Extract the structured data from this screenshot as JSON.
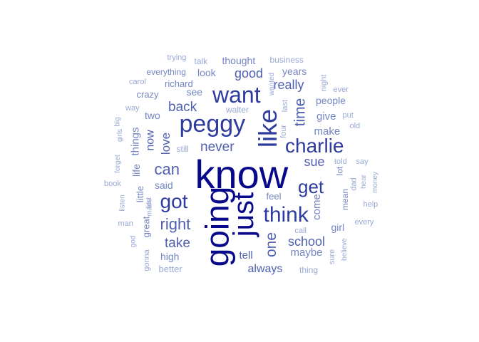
{
  "palette": {
    "tier1": "#08088a",
    "tier2": "#2e3c9e",
    "tier3": "#4f60b0",
    "tier4": "#7486c4",
    "tier5": "#9aaad6"
  },
  "words": [
    {
      "text": "know",
      "tier": 1,
      "rotated": false
    },
    {
      "text": "going",
      "tier": 1,
      "rotated": true
    },
    {
      "text": "just",
      "tier": 1,
      "rotated": true
    },
    {
      "text": "like",
      "tier": 2,
      "rotated": true
    },
    {
      "text": "peggy",
      "tier": 2,
      "rotated": false
    },
    {
      "text": "want",
      "tier": 2,
      "rotated": false
    },
    {
      "text": "think",
      "tier": 2,
      "rotated": false
    },
    {
      "text": "charlie",
      "tier": 2,
      "rotated": false
    },
    {
      "text": "got",
      "tier": 2,
      "rotated": false
    },
    {
      "text": "get",
      "tier": 2,
      "rotated": false
    },
    {
      "text": "can",
      "tier": 3,
      "rotated": false
    },
    {
      "text": "right",
      "tier": 3,
      "rotated": false
    },
    {
      "text": "one",
      "tier": 3,
      "rotated": true
    },
    {
      "text": "time",
      "tier": 3,
      "rotated": true
    },
    {
      "text": "back",
      "tier": 3,
      "rotated": false
    },
    {
      "text": "never",
      "tier": 3,
      "rotated": false
    },
    {
      "text": "take",
      "tier": 3,
      "rotated": false
    },
    {
      "text": "school",
      "tier": 3,
      "rotated": false
    },
    {
      "text": "really",
      "tier": 3,
      "rotated": false
    },
    {
      "text": "good",
      "tier": 3,
      "rotated": false
    },
    {
      "text": "sue",
      "tier": 3,
      "rotated": false
    },
    {
      "text": "love",
      "tier": 3,
      "rotated": true
    },
    {
      "text": "now",
      "tier": 3,
      "rotated": true
    },
    {
      "text": "always",
      "tier": 3,
      "rotated": false
    },
    {
      "text": "tell",
      "tier": 3,
      "rotated": false
    },
    {
      "text": "things",
      "tier": 4,
      "rotated": true
    },
    {
      "text": "make",
      "tier": 4,
      "rotated": false
    },
    {
      "text": "give",
      "tier": 4,
      "rotated": false
    },
    {
      "text": "come",
      "tier": 4,
      "rotated": true
    },
    {
      "text": "maybe",
      "tier": 4,
      "rotated": false
    },
    {
      "text": "thought",
      "tier": 4,
      "rotated": false
    },
    {
      "text": "look",
      "tier": 4,
      "rotated": false
    },
    {
      "text": "years",
      "tier": 4,
      "rotated": false
    },
    {
      "text": "see",
      "tier": 4,
      "rotated": false
    },
    {
      "text": "richard",
      "tier": 4,
      "rotated": false
    },
    {
      "text": "said",
      "tier": 4,
      "rotated": false
    },
    {
      "text": "life",
      "tier": 4,
      "rotated": true
    },
    {
      "text": "little",
      "tier": 4,
      "rotated": true
    },
    {
      "text": "great",
      "tier": 4,
      "rotated": true
    },
    {
      "text": "two",
      "tier": 4,
      "rotated": false
    },
    {
      "text": "high",
      "tier": 4,
      "rotated": false
    },
    {
      "text": "people",
      "tier": 4,
      "rotated": false
    },
    {
      "text": "girl",
      "tier": 4,
      "rotated": false
    },
    {
      "text": "lot",
      "tier": 4,
      "rotated": true
    },
    {
      "text": "mean",
      "tier": 4,
      "rotated": true
    },
    {
      "text": "feel",
      "tier": 4,
      "rotated": false
    },
    {
      "text": "crazy",
      "tier": 4,
      "rotated": false
    },
    {
      "text": "everything",
      "tier": 4,
      "rotated": false
    },
    {
      "text": "business",
      "tier": 5,
      "rotated": false
    },
    {
      "text": "talk",
      "tier": 5,
      "rotated": false
    },
    {
      "text": "trying",
      "tier": 5,
      "rotated": false
    },
    {
      "text": "carol",
      "tier": 5,
      "rotated": false
    },
    {
      "text": "way",
      "tier": 5,
      "rotated": false
    },
    {
      "text": "walter",
      "tier": 5,
      "rotated": false
    },
    {
      "text": "still",
      "tier": 5,
      "rotated": false
    },
    {
      "text": "four",
      "tier": 5,
      "rotated": true
    },
    {
      "text": "last",
      "tier": 5,
      "rotated": true
    },
    {
      "text": "wanted",
      "tier": 5,
      "rotated": true
    },
    {
      "text": "night",
      "tier": 5,
      "rotated": true
    },
    {
      "text": "ever",
      "tier": 5,
      "rotated": false
    },
    {
      "text": "put",
      "tier": 5,
      "rotated": false
    },
    {
      "text": "old",
      "tier": 5,
      "rotated": false
    },
    {
      "text": "told",
      "tier": 5,
      "rotated": false
    },
    {
      "text": "say",
      "tier": 5,
      "rotated": false
    },
    {
      "text": "dad",
      "tier": 5,
      "rotated": true
    },
    {
      "text": "hear",
      "tier": 5,
      "rotated": true
    },
    {
      "text": "money",
      "tier": 5,
      "rotated": true
    },
    {
      "text": "help",
      "tier": 5,
      "rotated": false
    },
    {
      "text": "every",
      "tier": 5,
      "rotated": false
    },
    {
      "text": "call",
      "tier": 5,
      "rotated": false
    },
    {
      "text": "sure",
      "tier": 5,
      "rotated": true
    },
    {
      "text": "believe",
      "tier": 5,
      "rotated": true
    },
    {
      "text": "thing",
      "tier": 5,
      "rotated": false
    },
    {
      "text": "better",
      "tier": 5,
      "rotated": false
    },
    {
      "text": "gonna",
      "tier": 5,
      "rotated": true
    },
    {
      "text": "god",
      "tier": 5,
      "rotated": true
    },
    {
      "text": "man",
      "tier": 5,
      "rotated": false
    },
    {
      "text": "made",
      "tier": 5,
      "rotated": true
    },
    {
      "text": "first",
      "tier": 5,
      "rotated": true
    },
    {
      "text": "listen",
      "tier": 5,
      "rotated": true
    },
    {
      "text": "book",
      "tier": 5,
      "rotated": false
    },
    {
      "text": "forget",
      "tier": 5,
      "rotated": true
    },
    {
      "text": "girls",
      "tier": 5,
      "rotated": true
    },
    {
      "text": "big",
      "tier": 5,
      "rotated": true
    }
  ]
}
